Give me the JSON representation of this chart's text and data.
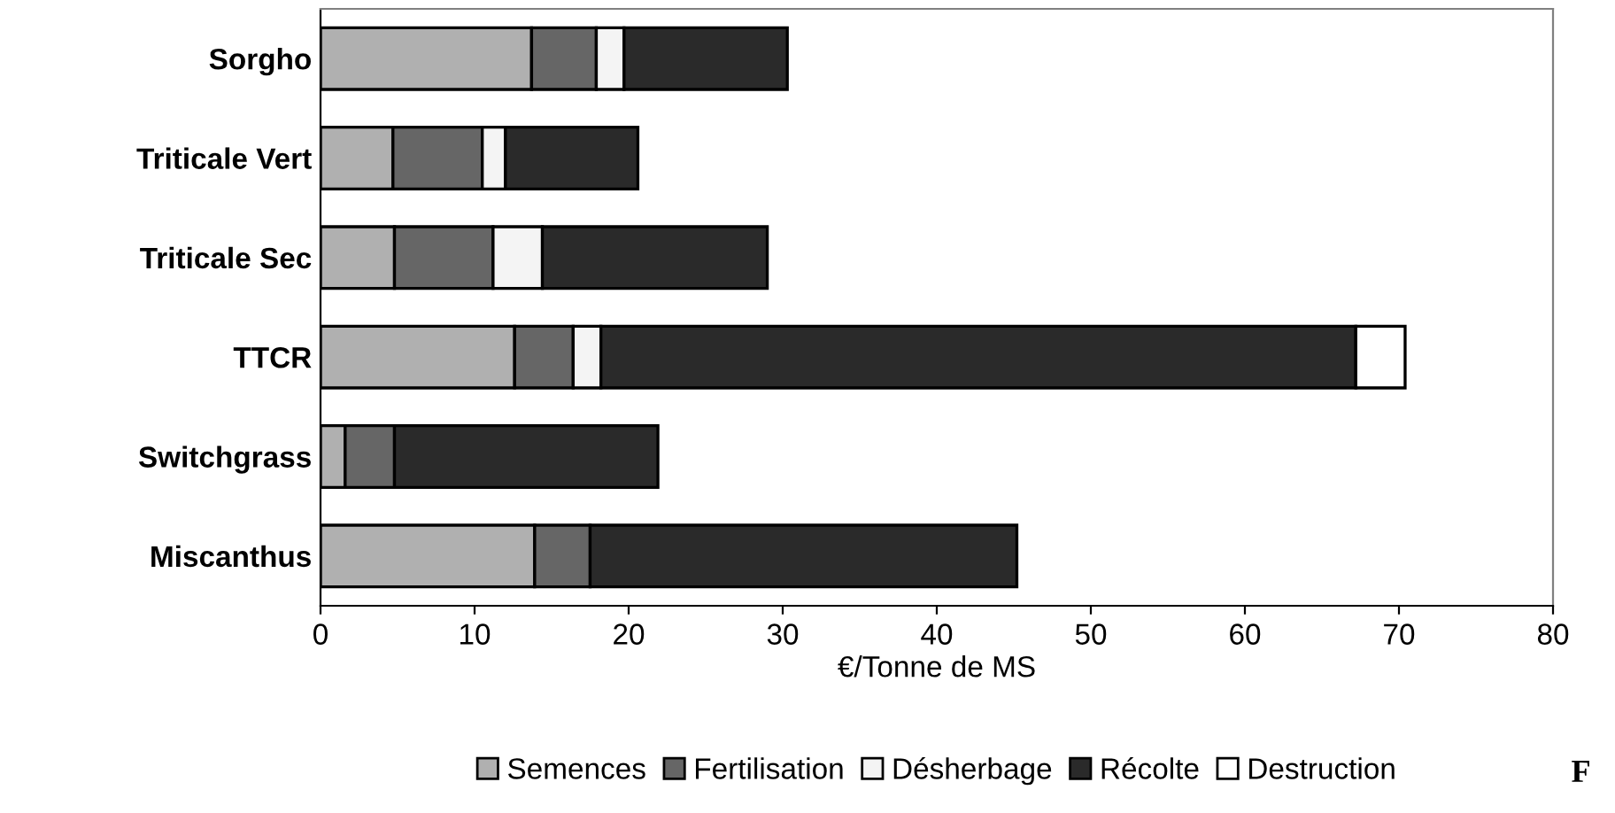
{
  "chart_data": {
    "type": "bar",
    "orientation": "horizontal",
    "stacked": true,
    "categories": [
      "Sorgho",
      "Triticale Vert",
      "Triticale Sec",
      "TTCR",
      "Switchgrass",
      "Miscanthus"
    ],
    "series": [
      {
        "name": "Semences",
        "color": "#b0b0b0",
        "values": [
          13.7,
          4.7,
          4.8,
          12.6,
          1.6,
          13.9
        ]
      },
      {
        "name": "Fertilisation",
        "color": "#666666",
        "values": [
          4.2,
          5.8,
          6.4,
          3.8,
          3.2,
          3.6
        ]
      },
      {
        "name": "Désherbage",
        "color": "#f4f4f4",
        "values": [
          1.8,
          1.5,
          3.2,
          1.8,
          null,
          null
        ]
      },
      {
        "name": "Récolte",
        "color": "#2a2a2a",
        "values": [
          10.6,
          8.6,
          14.6,
          49.0,
          17.1,
          27.7
        ]
      },
      {
        "name": "Destruction",
        "color": "#ffffff",
        "values": [
          null,
          null,
          null,
          3.2,
          null,
          null
        ]
      }
    ],
    "xlabel": "€/Tonne de MS",
    "xlim": [
      0,
      80
    ],
    "xticks": [
      0,
      10,
      20,
      30,
      40,
      50,
      60,
      70,
      80
    ],
    "grid": false,
    "legend": "bottom",
    "annotations": [
      "F"
    ]
  }
}
